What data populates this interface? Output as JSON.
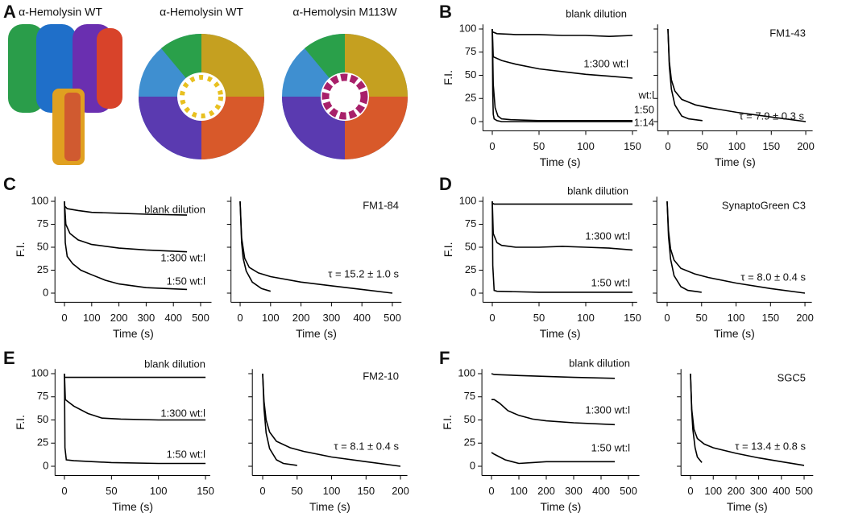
{
  "panel_a": {
    "label": "A",
    "titles": [
      "α-Hemolysin WT",
      "α-Hemolysin WT",
      "α-Hemolysin M113W"
    ]
  },
  "chart_data": [
    {
      "type": "line",
      "panel": "B",
      "x_label": "Time (s)",
      "y_label": "F.I.",
      "xlim": [
        -10,
        155
      ],
      "ylim": [
        -10,
        105
      ],
      "xticks": [
        0,
        50,
        100,
        150
      ],
      "yticks": [
        0,
        25,
        50,
        75,
        100
      ],
      "annotations": [
        "wt:l"
      ],
      "series": [
        {
          "name": "blank dilution",
          "color": "#000000",
          "x": [
            0,
            5,
            25,
            50,
            75,
            100,
            125,
            150
          ],
          "values": [
            97,
            95,
            94,
            94,
            93,
            93,
            92,
            93
          ]
        },
        {
          "name": "1:300 wt:l",
          "color": "#000000",
          "x": [
            0,
            1,
            10,
            25,
            50,
            75,
            100,
            125,
            150
          ],
          "values": [
            100,
            70,
            66,
            62,
            57,
            54,
            51,
            49,
            47
          ]
        },
        {
          "name": "1:50",
          "color": "#000000",
          "x": [
            0,
            1,
            3,
            6,
            10,
            20,
            50,
            100,
            150
          ],
          "values": [
            100,
            40,
            15,
            6,
            3,
            2,
            1,
            1,
            1
          ]
        },
        {
          "name": "1:14",
          "color": "#000000",
          "x": [
            0,
            0.5,
            1,
            2,
            5,
            10,
            50,
            100,
            150
          ],
          "values": [
            100,
            30,
            8,
            3,
            1,
            0,
            0,
            0,
            0
          ]
        }
      ]
    },
    {
      "type": "line",
      "x_label": "Time (s)",
      "xlim": [
        -15,
        210
      ],
      "ylim": [
        -10,
        105
      ],
      "xticks": [
        0,
        50,
        100,
        150,
        200
      ],
      "yticks": [
        0,
        25,
        50,
        75,
        100
      ],
      "annotations": [
        "FM1-43",
        "τ = 7.9 ± 0.3 s"
      ],
      "series": [
        {
          "color": "#000000",
          "x": [
            0,
            2,
            5,
            10,
            20,
            30,
            50
          ],
          "values": [
            100,
            60,
            35,
            18,
            6,
            3,
            1
          ]
        },
        {
          "color": "#000000",
          "x": [
            0,
            2,
            5,
            10,
            20,
            40,
            60,
            100,
            150,
            200
          ],
          "values": [
            100,
            65,
            45,
            33,
            24,
            18,
            15,
            10,
            5,
            0
          ]
        }
      ]
    },
    {
      "type": "line",
      "panel": "C",
      "x_label": "Time (s)",
      "y_label": "F.I.",
      "xlim": [
        -35,
        540
      ],
      "ylim": [
        -10,
        105
      ],
      "xticks": [
        0,
        100,
        200,
        300,
        400,
        500
      ],
      "yticks": [
        0,
        25,
        50,
        75,
        100
      ],
      "annotations": [],
      "series": [
        {
          "name": "blank dilution",
          "color": "#000000",
          "x": [
            0,
            10,
            50,
            100,
            200,
            300,
            450
          ],
          "values": [
            95,
            92,
            90,
            88,
            87,
            86,
            85
          ]
        },
        {
          "name": "1:300 wt:l",
          "color": "#000000",
          "x": [
            0,
            5,
            20,
            50,
            100,
            200,
            300,
            450
          ],
          "values": [
            100,
            75,
            65,
            58,
            53,
            49,
            47,
            45
          ]
        },
        {
          "name": "1:50 wt:l",
          "color": "#000000",
          "x": [
            0,
            3,
            10,
            30,
            60,
            100,
            150,
            200,
            300,
            450
          ],
          "values": [
            100,
            55,
            40,
            32,
            25,
            20,
            14,
            10,
            6,
            4
          ]
        }
      ]
    },
    {
      "type": "line",
      "x_label": "Time (s)",
      "xlim": [
        -30,
        530
      ],
      "ylim": [
        -10,
        105
      ],
      "xticks": [
        0,
        100,
        200,
        300,
        400,
        500
      ],
      "yticks": [
        0,
        25,
        50,
        75,
        100
      ],
      "annotations": [
        "FM1-84",
        "τ = 15.2 ± 1.0 s"
      ],
      "series": [
        {
          "color": "#000000",
          "x": [
            0,
            5,
            10,
            20,
            40,
            70,
            100
          ],
          "values": [
            100,
            55,
            38,
            24,
            12,
            5,
            2
          ]
        },
        {
          "color": "#000000",
          "x": [
            0,
            5,
            15,
            30,
            60,
            100,
            200,
            300,
            400,
            500
          ],
          "values": [
            100,
            60,
            38,
            28,
            22,
            18,
            12,
            8,
            4,
            0
          ]
        }
      ]
    },
    {
      "type": "line",
      "panel": "D",
      "x_label": "Time (s)",
      "y_label": "F.I.",
      "xlim": [
        -10,
        155
      ],
      "ylim": [
        -10,
        105
      ],
      "xticks": [
        0,
        50,
        100,
        150
      ],
      "yticks": [
        0,
        25,
        50,
        75,
        100
      ],
      "annotations": [],
      "series": [
        {
          "name": "blank dilution",
          "color": "#000000",
          "x": [
            0,
            2,
            50,
            100,
            150
          ],
          "values": [
            98,
            97,
            97,
            97,
            97
          ]
        },
        {
          "name": "1:300 wt:l",
          "color": "#000000",
          "x": [
            0,
            1,
            5,
            10,
            25,
            50,
            75,
            100,
            125,
            150
          ],
          "values": [
            100,
            65,
            55,
            52,
            50,
            50,
            51,
            50,
            49,
            47
          ]
        },
        {
          "name": "1:50 wt:l",
          "color": "#000000",
          "x": [
            0,
            0.5,
            2,
            5,
            50,
            100,
            150
          ],
          "values": [
            100,
            30,
            3,
            2,
            1,
            1,
            1
          ]
        }
      ]
    },
    {
      "type": "line",
      "x_label": "Time (s)",
      "xlim": [
        -15,
        210
      ],
      "ylim": [
        -10,
        105
      ],
      "xticks": [
        0,
        50,
        100,
        150,
        200
      ],
      "yticks": [
        0,
        25,
        50,
        75,
        100
      ],
      "annotations": [
        "SynaptoGreen C3",
        "τ = 8.0 ± 0.4 s"
      ],
      "series": [
        {
          "color": "#000000",
          "x": [
            0,
            2,
            5,
            10,
            20,
            30,
            50
          ],
          "values": [
            100,
            62,
            37,
            19,
            7,
            3,
            1
          ]
        },
        {
          "color": "#000000",
          "x": [
            0,
            2,
            5,
            10,
            20,
            40,
            60,
            100,
            150,
            200
          ],
          "values": [
            100,
            68,
            48,
            36,
            27,
            21,
            17,
            11,
            5,
            0
          ]
        }
      ]
    },
    {
      "type": "line",
      "panel": "E",
      "x_label": "Time (s)",
      "y_label": "F.I.",
      "xlim": [
        -10,
        155
      ],
      "ylim": [
        -10,
        105
      ],
      "xticks": [
        0,
        50,
        100,
        150
      ],
      "yticks": [
        0,
        25,
        50,
        75,
        100
      ],
      "annotations": [],
      "series": [
        {
          "name": "blank dilution",
          "color": "#000000",
          "x": [
            0,
            5,
            50,
            100,
            150
          ],
          "values": [
            96,
            96,
            96,
            96,
            96
          ]
        },
        {
          "name": "1:300 wt:l",
          "color": "#000000",
          "x": [
            0,
            1,
            10,
            25,
            40,
            60,
            100,
            150
          ],
          "values": [
            100,
            72,
            65,
            57,
            52,
            51,
            50,
            50
          ]
        },
        {
          "name": "1:50 wt:l",
          "color": "#000000",
          "x": [
            0,
            0.5,
            2,
            10,
            50,
            100,
            150
          ],
          "values": [
            100,
            20,
            7,
            6,
            4,
            3,
            3
          ]
        }
      ]
    },
    {
      "type": "line",
      "x_label": "Time (s)",
      "xlim": [
        -15,
        210
      ],
      "ylim": [
        -10,
        105
      ],
      "xticks": [
        0,
        50,
        100,
        150,
        200
      ],
      "yticks": [
        0,
        25,
        50,
        75,
        100
      ],
      "annotations": [
        "FM2-10",
        "τ = 8.1 ± 0.4 s"
      ],
      "series": [
        {
          "color": "#000000",
          "x": [
            0,
            2,
            5,
            10,
            20,
            30,
            50
          ],
          "values": [
            100,
            62,
            36,
            19,
            7,
            3,
            1
          ]
        },
        {
          "color": "#000000",
          "x": [
            0,
            2,
            5,
            10,
            20,
            40,
            60,
            100,
            150,
            200
          ],
          "values": [
            100,
            70,
            50,
            37,
            27,
            20,
            16,
            10,
            5,
            0
          ]
        }
      ]
    },
    {
      "type": "line",
      "panel": "F",
      "x_label": "Time (s)",
      "y_label": "F.I.",
      "xlim": [
        -35,
        540
      ],
      "ylim": [
        -10,
        105
      ],
      "xticks": [
        0,
        100,
        200,
        300,
        400,
        500
      ],
      "yticks": [
        0,
        25,
        50,
        75,
        100
      ],
      "annotations": [],
      "series": [
        {
          "name": "blank dilution",
          "color": "#000000",
          "x": [
            0,
            10,
            100,
            200,
            300,
            450
          ],
          "values": [
            100,
            99,
            98,
            97,
            96,
            95
          ]
        },
        {
          "name": "1:300 wt:l",
          "color": "#000000",
          "x": [
            0,
            10,
            30,
            60,
            100,
            150,
            200,
            300,
            450
          ],
          "values": [
            72,
            72,
            68,
            60,
            55,
            51,
            49,
            47,
            45
          ]
        },
        {
          "name": "1:50 wt:l",
          "color": "#000000",
          "x": [
            0,
            10,
            50,
            100,
            150,
            200,
            300,
            450
          ],
          "values": [
            15,
            13,
            7,
            3,
            4,
            5,
            5,
            5
          ]
        }
      ]
    },
    {
      "type": "line",
      "x_label": "Time (s)",
      "xlim": [
        -42,
        540
      ],
      "ylim": [
        -10,
        105
      ],
      "xticks": [
        0,
        100,
        200,
        300,
        400,
        500
      ],
      "yticks": [
        0,
        25,
        50,
        75,
        100
      ],
      "annotations": [
        "SGC5",
        "τ = 13.4 ± 0.8 s"
      ],
      "series": [
        {
          "color": "#000000",
          "x": [
            0,
            5,
            10,
            20,
            30,
            50
          ],
          "values": [
            100,
            60,
            40,
            20,
            10,
            4
          ]
        },
        {
          "color": "#000000",
          "x": [
            0,
            5,
            15,
            30,
            60,
            100,
            200,
            300,
            400,
            500
          ],
          "values": [
            100,
            62,
            40,
            30,
            24,
            20,
            14,
            9,
            5,
            1
          ]
        }
      ]
    }
  ]
}
